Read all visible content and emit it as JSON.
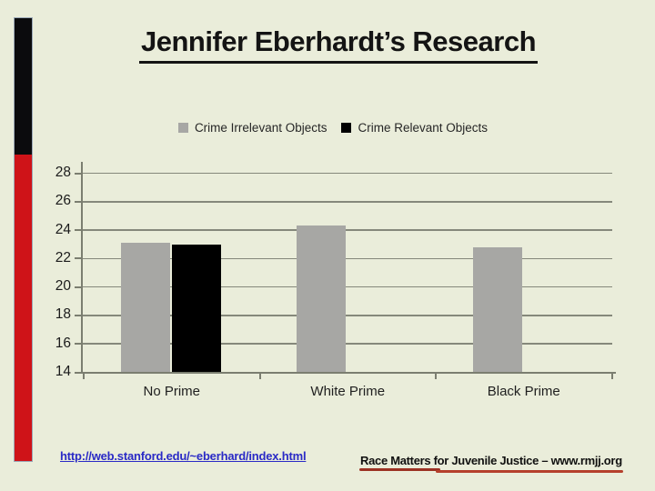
{
  "slide": {
    "title": "Jennifer Eberhardt’s Research",
    "background_color": "#eaedda",
    "accent_colors": {
      "black": "#0b0b0d",
      "red": "#cf1318"
    }
  },
  "legend": {
    "items": [
      {
        "label": "Crime Irrelevant Objects",
        "color": "#a7a7a4"
      },
      {
        "label": "Crime Relevant Objects",
        "color": "#000000"
      }
    ]
  },
  "chart_data": {
    "type": "bar",
    "title": "",
    "xlabel": "",
    "ylabel": "",
    "categories": [
      "No Prime",
      "White Prime",
      "Black Prime"
    ],
    "series": [
      {
        "name": "Crime Irrelevant Objects",
        "color": "#a7a7a4",
        "values": [
          23.1,
          24.3,
          22.8
        ]
      },
      {
        "name": "Crime Relevant Objects",
        "color": "#000000",
        "values": [
          23.0,
          null,
          null
        ]
      }
    ],
    "ylim": [
      14,
      28
    ],
    "yticks": [
      28,
      26,
      24,
      22,
      20,
      18,
      16,
      14
    ],
    "grid": true,
    "legend_position": "top"
  },
  "footer": {
    "link": "http://web.stanford.edu/~eberhard/index.html",
    "link_color": "#2a2ac6",
    "credit": "Race Matters for Juvenile Justice – www.rmjj.org",
    "credit_underline_colors": [
      "#9c3123",
      "#b5402c"
    ]
  }
}
